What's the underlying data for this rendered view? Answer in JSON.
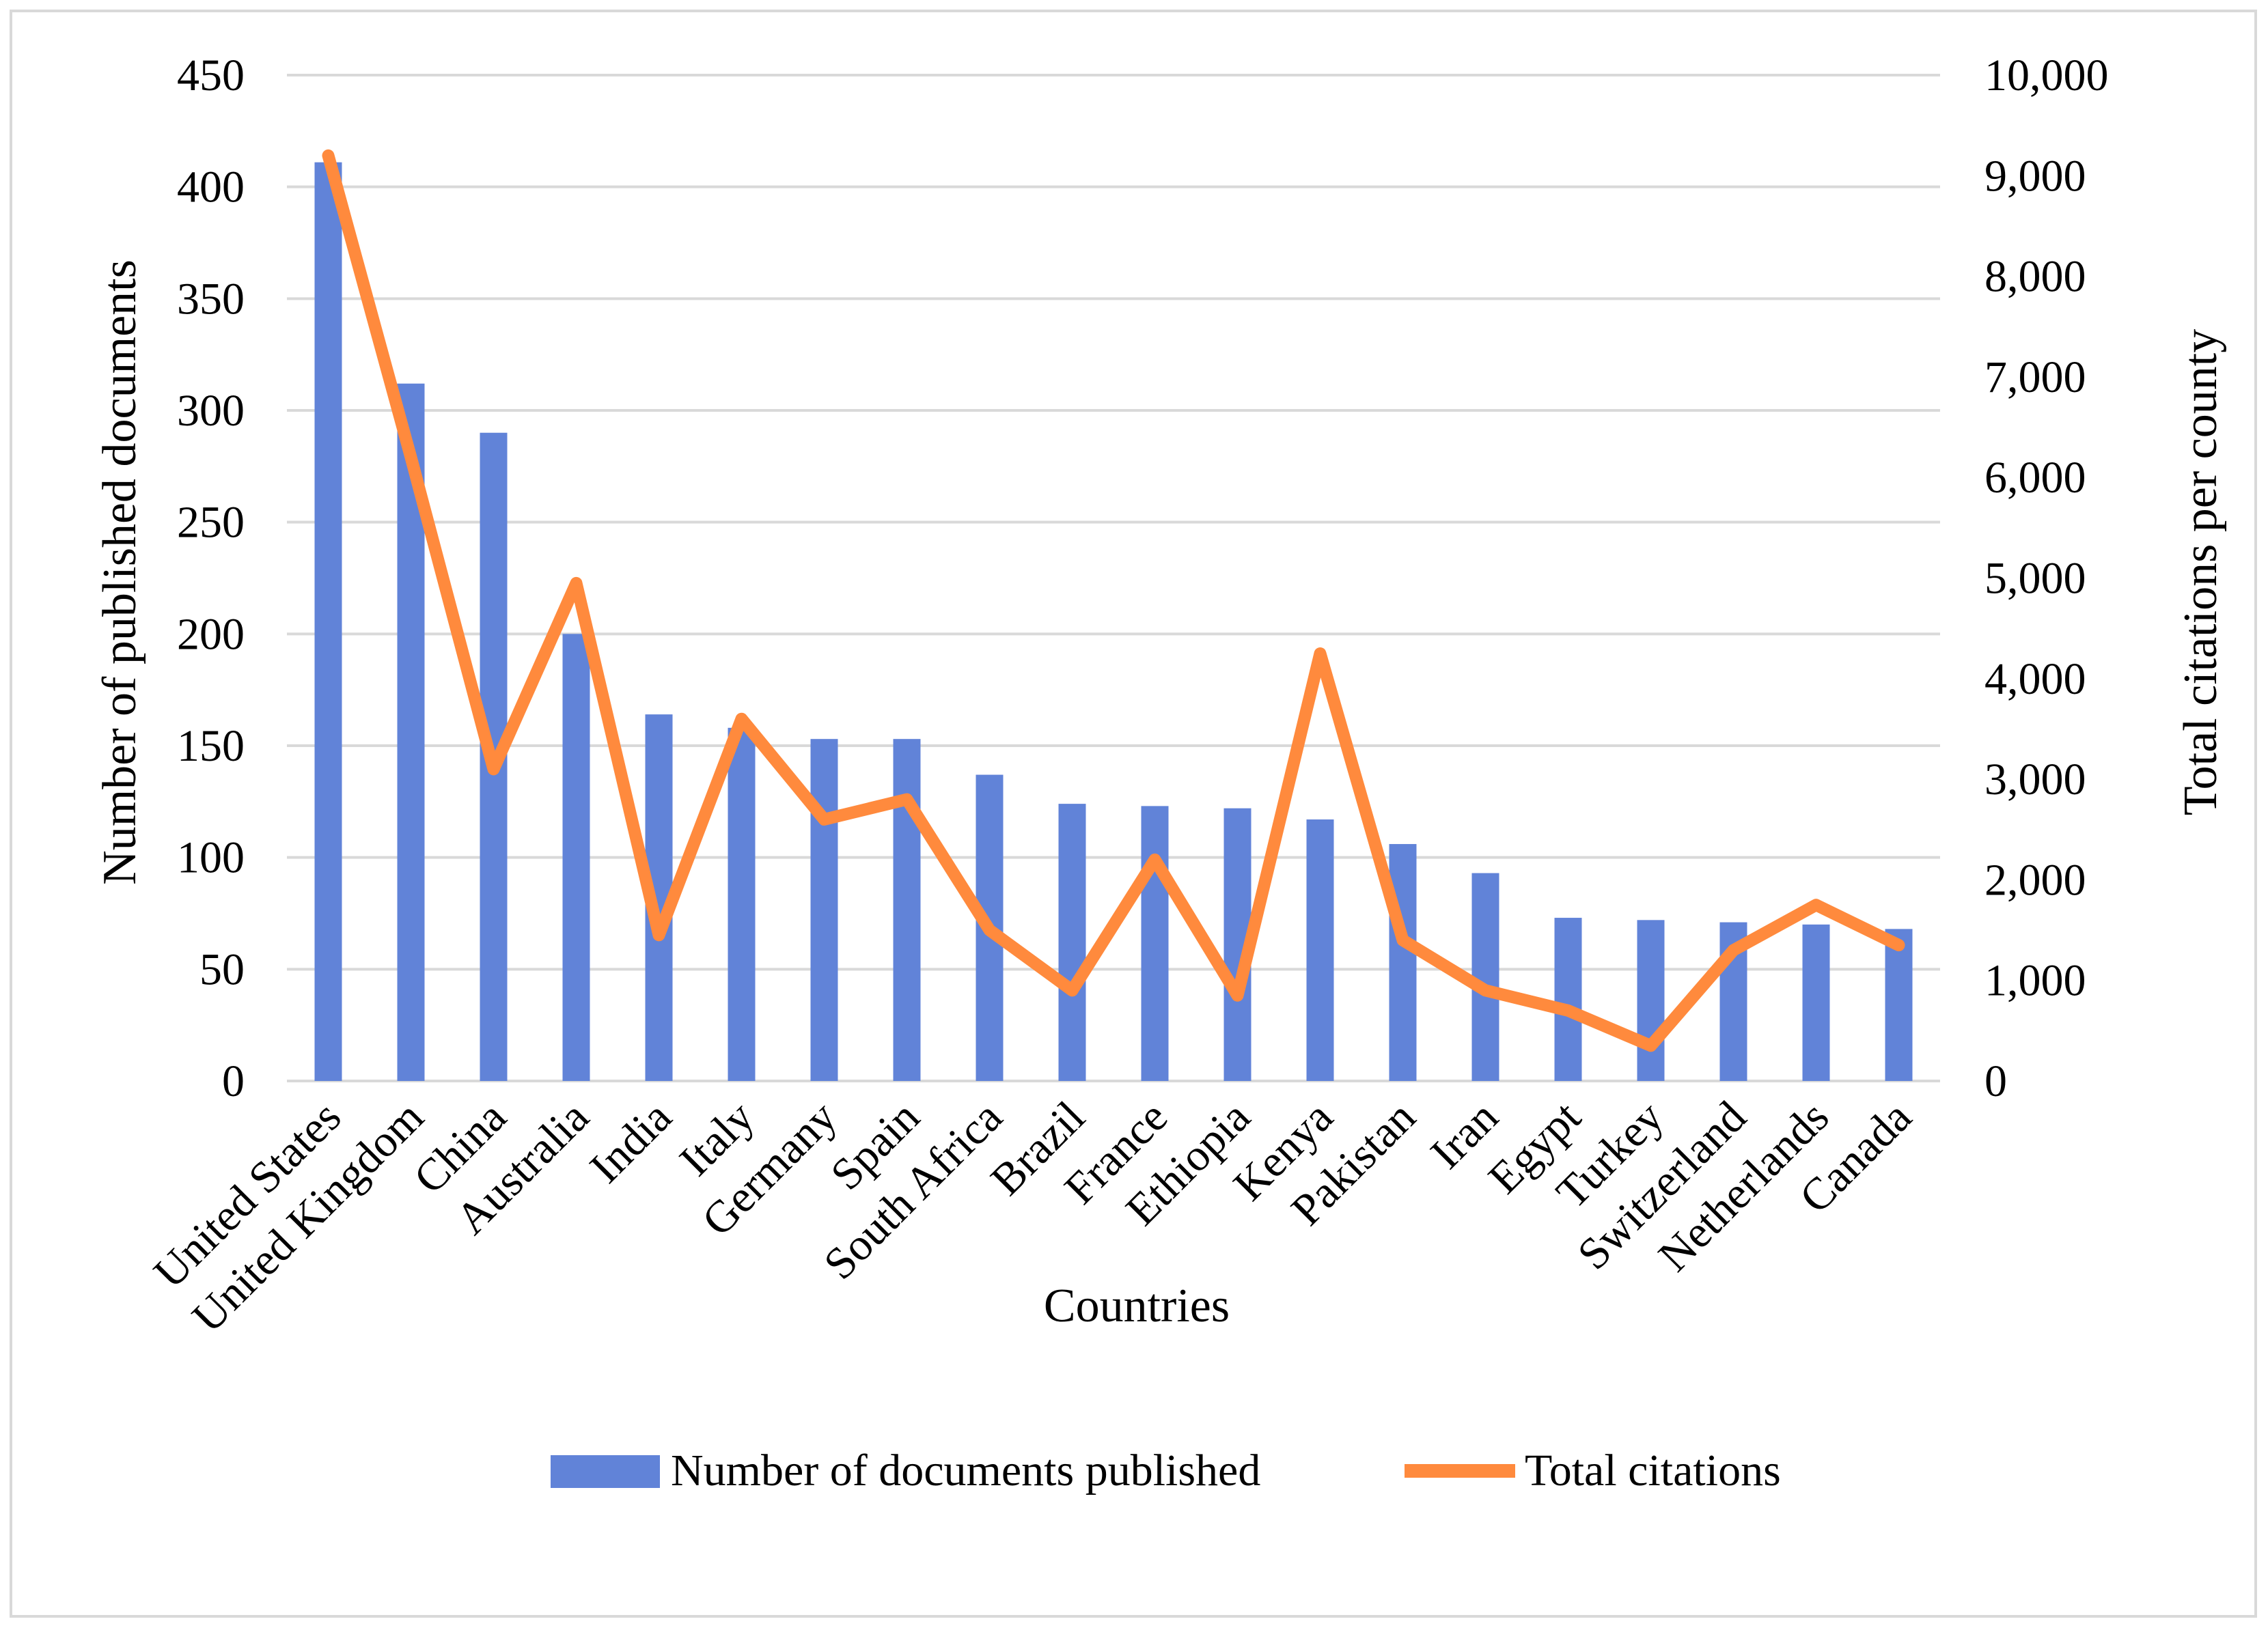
{
  "chart_data": {
    "type": "bar+line",
    "title": "",
    "xlabel": "Countries",
    "ylabel": "Number of published documents",
    "y2label": "Total citations per county",
    "ylim": [
      0,
      450
    ],
    "y2lim": [
      0,
      10000
    ],
    "yticks": [
      "0",
      "50",
      "100",
      "150",
      "200",
      "250",
      "300",
      "350",
      "400",
      "450"
    ],
    "y2ticks": [
      "0",
      "1,000",
      "2,000",
      "3,000",
      "4,000",
      "5,000",
      "6,000",
      "7,000",
      "8,000",
      "9,000",
      "10,000"
    ],
    "grid": true,
    "legend_position": "bottom",
    "categories": [
      "United States",
      "United Kingdom",
      "China",
      "Australia",
      "India",
      "Italy",
      "Germany",
      "Spain",
      "South Africa",
      "Brazil",
      "France",
      "Ethiopia",
      "Kenya",
      "Pakistan",
      "Iran",
      "Egypt",
      "Turkey",
      "Switzerland",
      "Netherlands",
      "Canada"
    ],
    "series": [
      {
        "name": "Number of documents published",
        "type": "bar",
        "axis": "left",
        "color": "#6183d8",
        "values": [
          411,
          312,
          290,
          200,
          164,
          158,
          153,
          153,
          137,
          124,
          123,
          122,
          117,
          106,
          93,
          73,
          72,
          71,
          70,
          68
        ]
      },
      {
        "name": "Total citations",
        "type": "line",
        "axis": "right",
        "color": "#ff8a3d",
        "values": [
          9200,
          6200,
          3100,
          4950,
          1450,
          3600,
          2600,
          2800,
          1500,
          900,
          2200,
          850,
          4250,
          1400,
          900,
          700,
          350,
          1300,
          1750,
          1350
        ]
      }
    ]
  }
}
